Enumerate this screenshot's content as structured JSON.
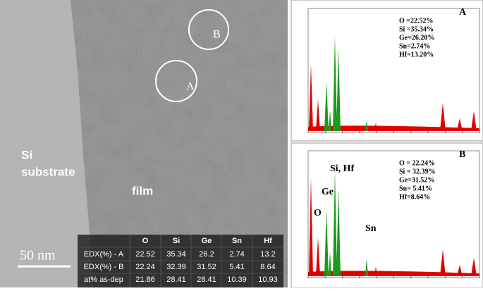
{
  "image": {
    "region_b": "B",
    "region_a": "A",
    "si": "Si",
    "substrate": "substrate",
    "film": "film",
    "scale": "50 nm"
  },
  "table": {
    "header": [
      "O",
      "Si",
      "Ge",
      "Sn",
      "Hf"
    ],
    "rows": [
      [
        "EDX(%) - A",
        22.52,
        35.34,
        26.2,
        2.74,
        13.2
      ],
      [
        "EDX(%) - B",
        22.24,
        32.39,
        31.52,
        5.41,
        8.64
      ],
      [
        "at% as-dep",
        21.86,
        28.41,
        28.41,
        10.39,
        10.93
      ]
    ]
  },
  "spectrum_a": {
    "label": "A",
    "composition": [
      "O =22.52%",
      "Si =35.34%",
      "Ge=26.20%",
      "Sn=2.74%",
      "Hf=13.20%"
    ]
  },
  "spectrum_b": {
    "label": "B",
    "composition": [
      "O = 22.24%",
      "Si = 32.39%",
      "Ge=31.52%",
      "Sn= 5.41%",
      "Hf=8.64%"
    ],
    "peak_labels": [
      "Si, Hf",
      "Ge",
      "O",
      "Sn"
    ]
  }
}
